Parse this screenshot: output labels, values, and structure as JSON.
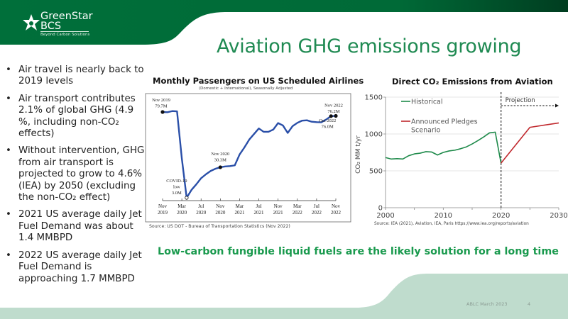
{
  "brand": {
    "name": "GreenStar",
    "sub": "BCS",
    "tagline": "Beyond Carbon Solutions",
    "colors": {
      "header_green": "#006f3a",
      "header_dark": "#003d20",
      "footer_mint": "#bfdccd",
      "title_green": "#1f8a52"
    }
  },
  "slide": {
    "title": "Aviation GHG emissions growing",
    "bullets": [
      "Air travel is nearly back to 2019 levels",
      "Air transport contributes 2.1% of global GHG (4.9 %, including non-CO₂ effects)",
      "Without intervention, GHG from air transport is projected to grow to 4.6% (IEA) by 2050 (excluding the non-CO₂ effect)",
      "2021 US average daily Jet Fuel Demand was about 1.4 MMBPD",
      "2022 US average daily Jet Fuel Demand is approaching 1.7 MMBPD"
    ],
    "tagline": "Low-carbon fungible liquid fuels are the likely solution for a long time",
    "footer": "ABLC March 2023",
    "page_number": "4"
  },
  "chart_data": [
    {
      "type": "line",
      "title": "Monthly Passengers on US Scheduled Airlines",
      "subtitle": "(Domestic + International), Seasonally Adjusted",
      "source": "Source: US DOT - Bureau of Transportation Statistics (Nov 2022)",
      "unit": "M passengers",
      "x_start": "Nov 2019",
      "x_end": "Nov 2022",
      "x_tick_labels": [
        "Nov 2019",
        "Mar 2020",
        "Jul 2020",
        "Nov 2020",
        "Mar 2021",
        "Jul 2021",
        "Nov 2021",
        "Mar 2022",
        "Jul 2022",
        "Nov 2022"
      ],
      "series": [
        {
          "color": "#2a4fa8",
          "values": [
            79.7,
            79.5,
            80.5,
            80.3,
            38,
            3.0,
            10,
            15,
            20.5,
            24,
            27,
            29,
            30.3,
            31,
            31.3,
            32,
            41.7,
            48,
            55,
            60,
            65,
            62,
            62,
            64,
            69.8,
            67.7,
            61,
            67,
            70,
            72,
            72.3,
            71,
            70.6,
            70.5,
            73,
            76.0,
            76.2
          ]
        }
      ],
      "ylim": [
        0,
        84
      ],
      "grid": false,
      "annotations": [
        {
          "index": 0,
          "lines": [
            "Nov 2019",
            "79.7M"
          ]
        },
        {
          "index": 5,
          "lines": [
            "COVID-19",
            "low",
            "3.0M"
          ]
        },
        {
          "index": 12,
          "lines": [
            "Nov 2020",
            "30.3M"
          ]
        },
        {
          "index": 35,
          "lines": [
            "Oct 2022",
            "76.0M"
          ]
        },
        {
          "index": 36,
          "lines": [
            "Nov 2022",
            "76.2M"
          ]
        }
      ]
    },
    {
      "type": "line",
      "title": "Direct CO₂ Emissions from Aviation",
      "ylabel": "CO₂ MM t/yr",
      "source": "Source: IEA (2021), Aviation, IEA, Paris https://www.iea.org/reports/aviation",
      "xlim": [
        2000,
        2030
      ],
      "ylim": [
        0,
        1500
      ],
      "x_ticks": [
        2000,
        2010,
        2020,
        2030
      ],
      "y_ticks": [
        0,
        500,
        1000,
        1500
      ],
      "grid": true,
      "legend_position": "top-left",
      "projection_label": "Projection",
      "projection_start": 2020,
      "series": [
        {
          "name": "Historical",
          "color": "#1e8a4a",
          "x": [
            2000,
            2001,
            2002,
            2003,
            2004,
            2005,
            2006,
            2007,
            2008,
            2009,
            2010,
            2011,
            2012,
            2013,
            2014,
            2015,
            2016,
            2017,
            2018,
            2019,
            2020
          ],
          "y": [
            680,
            660,
            665,
            660,
            705,
            730,
            740,
            760,
            755,
            715,
            750,
            770,
            780,
            800,
            825,
            865,
            910,
            960,
            1015,
            1025,
            605
          ]
        },
        {
          "name": "Announced Pledges Scenario",
          "color": "#c0282d",
          "x": [
            2020,
            2025,
            2030
          ],
          "y": [
            605,
            1090,
            1150
          ]
        }
      ]
    }
  ]
}
